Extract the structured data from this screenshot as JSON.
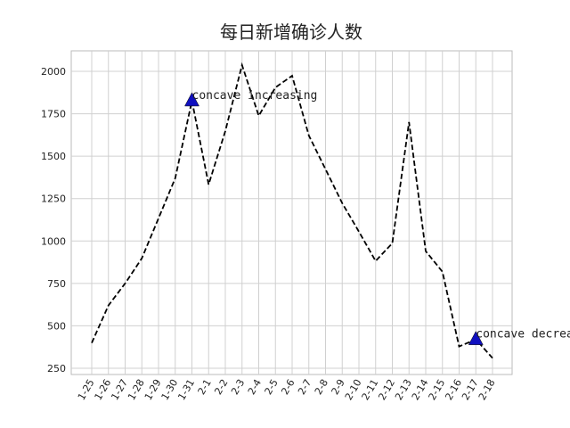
{
  "chart_data": {
    "type": "line",
    "title": "每日新增确诊人数",
    "categories": [
      "1-25",
      "1-26",
      "1-27",
      "1-28",
      "1-29",
      "1-30",
      "1-31",
      "2-1",
      "2-2",
      "2-3",
      "2-4",
      "2-5",
      "2-6",
      "2-7",
      "2-8",
      "2-9",
      "2-10",
      "2-11",
      "2-12",
      "2-13",
      "2-14",
      "2-15",
      "2-16",
      "2-17",
      "2-18"
    ],
    "series": [
      {
        "name": "每日新增确诊",
        "color": "#000000",
        "values": [
          399,
          620,
          750,
          898,
          1134,
          1370,
          1827,
          1333,
          1648,
          2037,
          1738,
          1905,
          1974,
          1622,
          1423,
          1223,
          1055,
          882,
          987,
          1701,
          940,
          819,
          378,
          420,
          310
        ]
      }
    ],
    "annotations": [
      {
        "text": "concave increasing",
        "x": "1-31",
        "marker_color": "#1010c0"
      },
      {
        "text": "concave decreasing",
        "x": "2-17",
        "marker_color": "#1010c0"
      }
    ],
    "ylim": [
      213,
      2121
    ],
    "yticks": [
      250,
      500,
      750,
      1000,
      1250,
      1500,
      1750,
      2000
    ],
    "grid": true
  }
}
